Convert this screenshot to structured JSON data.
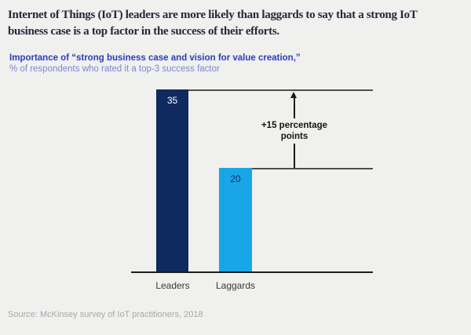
{
  "page": {
    "background": "#f0f0ef"
  },
  "header": {
    "title": "Internet of Things (IoT) leaders are more likely than laggards to say that a strong IoT business case is a top factor in the success of their efforts."
  },
  "chart_data": {
    "type": "bar",
    "title": "Importance of “strong business case and vision for value creation,”",
    "subtitle": "% of respondents who rated it a top-3 success factor",
    "categories": [
      "Leaders",
      "Laggards"
    ],
    "values": [
      35,
      20
    ],
    "ylim": [
      0,
      35
    ],
    "annotation": "+15 percentage points",
    "bar_colors": [
      "#0e2a5f",
      "#18a6e8"
    ],
    "value_label_colors": [
      "#ffffff",
      "#0e2a5f"
    ],
    "line_color": "#4f4f4f",
    "grid": false,
    "legend": false
  },
  "footer": {
    "source": "Source: McKinsey survey of IoT practitioners, 2018"
  }
}
